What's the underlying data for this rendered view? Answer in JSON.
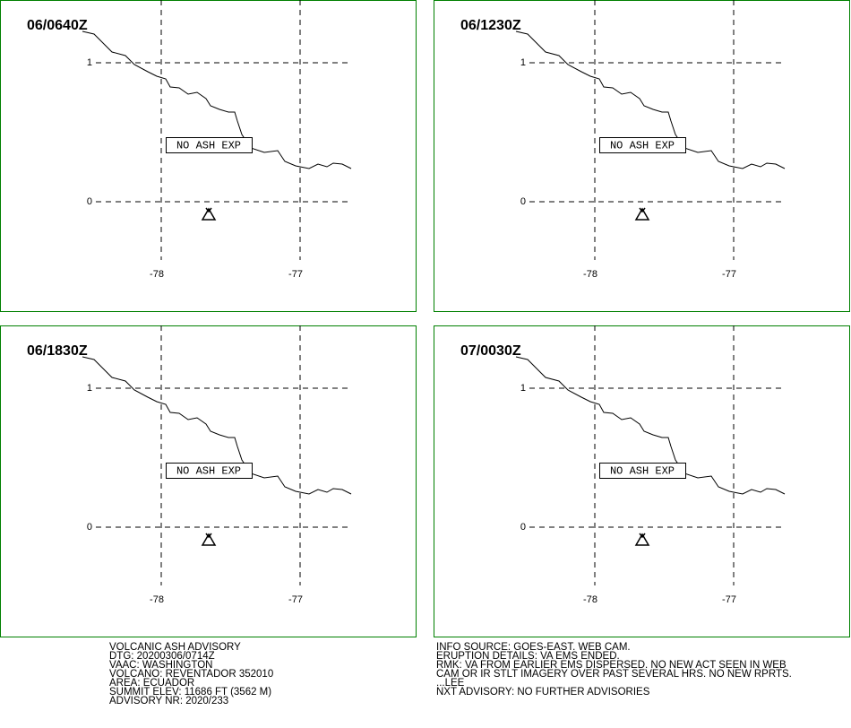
{
  "panels": [
    {
      "time": "06/0640Z",
      "annotation": "NO ASH EXP",
      "lat_labels": [
        "1",
        "0"
      ],
      "lon_labels": [
        "-78",
        "-77"
      ]
    },
    {
      "time": "06/1230Z",
      "annotation": "NO ASH EXP",
      "lat_labels": [
        "1",
        "0"
      ],
      "lon_labels": [
        "-78",
        "-77"
      ]
    },
    {
      "time": "06/1830Z",
      "annotation": "NO ASH EXP",
      "lat_labels": [
        "1",
        "0"
      ],
      "lon_labels": [
        "-78",
        "-77"
      ]
    },
    {
      "time": "07/0030Z",
      "annotation": "NO ASH EXP",
      "lat_labels": [
        "1",
        "0"
      ],
      "lon_labels": [
        "-78",
        "-77"
      ]
    }
  ],
  "advisory": {
    "left": [
      "VOLCANIC ASH ADVISORY",
      "DTG: 20200306/0714Z",
      "VAAC: WASHINGTON",
      "VOLCANO: REVENTADOR 352010",
      "AREA: ECUADOR",
      "SUMMIT ELEV: 11686 FT (3562 M)",
      "ADVISORY NR: 2020/233"
    ],
    "right": [
      "INFO SOURCE: GOES-EAST. WEB CAM.",
      "ERUPTION DETAILS: VA EMS ENDED.",
      "RMK: VA FROM EARLIER EMS DISPERSED. NO NEW ACT SEEN IN WEB",
      "CAM OR IR STLT IMAGERY OVER PAST SEVERAL HRS. NO NEW RPRTS.",
      "...LEE",
      "NXT ADVISORY: NO FURTHER ADVISORIES"
    ]
  }
}
